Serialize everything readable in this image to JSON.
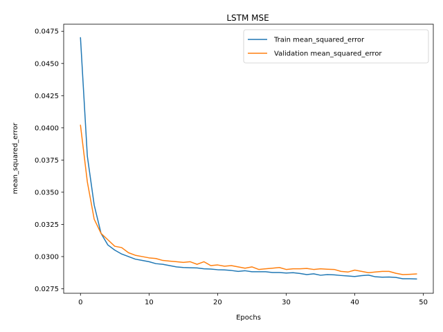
{
  "chart_data": {
    "type": "line",
    "title": "LSTM MSE",
    "xlabel": "Epochs",
    "ylabel": "mean_squared_error",
    "xlim": [
      -2.45,
      51.45
    ],
    "ylim": [
      0.02715,
      0.04805
    ],
    "xticks": [
      0,
      10,
      20,
      30,
      40,
      50
    ],
    "yticks": [
      0.0275,
      0.03,
      0.0325,
      0.035,
      0.0375,
      0.04,
      0.0425,
      0.045,
      0.0475
    ],
    "ytick_labels": [
      "0.0275",
      "0.0300",
      "0.0325",
      "0.0350",
      "0.0375",
      "0.0400",
      "0.0425",
      "0.0450",
      "0.0475"
    ],
    "grid": false,
    "legend_position": "top-right",
    "x": [
      0,
      1,
      2,
      3,
      4,
      5,
      6,
      7,
      8,
      9,
      10,
      11,
      12,
      13,
      14,
      15,
      16,
      17,
      18,
      19,
      20,
      21,
      22,
      23,
      24,
      25,
      26,
      27,
      28,
      29,
      30,
      31,
      32,
      33,
      34,
      35,
      36,
      37,
      38,
      39,
      40,
      41,
      42,
      43,
      44,
      45,
      46,
      47,
      48,
      49
    ],
    "series": [
      {
        "name": "Train mean_squared_error",
        "color": "#1f77b4",
        "values": [
          0.047,
          0.0378,
          0.034,
          0.0318,
          0.0309,
          0.0305,
          0.0302,
          0.03,
          0.0298,
          0.0297,
          0.0296,
          0.02945,
          0.0294,
          0.0293,
          0.0292,
          0.02915,
          0.02913,
          0.02912,
          0.02905,
          0.02903,
          0.02898,
          0.02896,
          0.02892,
          0.02885,
          0.0289,
          0.02882,
          0.02882,
          0.02882,
          0.02876,
          0.02876,
          0.02872,
          0.02875,
          0.02869,
          0.0286,
          0.02866,
          0.02855,
          0.0286,
          0.02858,
          0.02853,
          0.02849,
          0.02845,
          0.02852,
          0.02856,
          0.02843,
          0.0284,
          0.02841,
          0.02838,
          0.02828,
          0.02828,
          0.02826
        ]
      },
      {
        "name": "Validation mean_squared_error",
        "color": "#ff7f0e",
        "values": [
          0.0402,
          0.0358,
          0.0329,
          0.0318,
          0.0313,
          0.0308,
          0.0307,
          0.0303,
          0.0301,
          0.03,
          0.0299,
          0.02985,
          0.0297,
          0.02965,
          0.0296,
          0.02955,
          0.0296,
          0.0294,
          0.0296,
          0.0293,
          0.02935,
          0.02925,
          0.0293,
          0.0292,
          0.0291,
          0.0292,
          0.029,
          0.02905,
          0.0291,
          0.02915,
          0.029,
          0.02905,
          0.02905,
          0.02908,
          0.029,
          0.02905,
          0.02902,
          0.029,
          0.02885,
          0.0288,
          0.02895,
          0.02885,
          0.02875,
          0.0288,
          0.02885,
          0.02885,
          0.0287,
          0.0286,
          0.02862,
          0.02865
        ]
      }
    ]
  }
}
